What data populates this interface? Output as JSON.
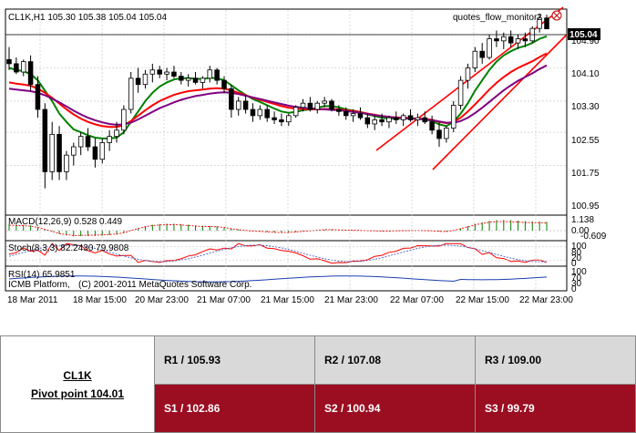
{
  "chart_data": {
    "type": "candlestick",
    "symbol_header": "CL1K,H1  105.30 105.38 105.04 105.04",
    "indicator_name": "quotes_flow_monitor2",
    "current_price": "105.04",
    "price_ticks": [
      "104.90",
      "104.10",
      "103.30",
      "102.55",
      "101.75",
      "100.95"
    ],
    "x_ticks": [
      "18 Mar 2011",
      "18 Mar 15:00",
      "20 Mar 23:00",
      "21 Mar 07:00",
      "21 Mar 15:00",
      "21 Mar 23:00",
      "22 Mar 07:00",
      "22 Mar 15:00",
      "22 Mar 23:00"
    ],
    "ylim": [
      100.95,
      105.6
    ],
    "candles": [
      [
        104.3,
        104.6,
        104.05,
        104.2
      ],
      [
        104.2,
        104.35,
        103.95,
        104.0
      ],
      [
        104.0,
        104.3,
        103.9,
        104.25
      ],
      [
        104.25,
        104.4,
        103.55,
        103.7
      ],
      [
        103.7,
        103.9,
        102.9,
        103.1
      ],
      [
        103.1,
        103.25,
        101.2,
        101.6
      ],
      [
        101.6,
        102.8,
        101.4,
        102.5
      ],
      [
        102.5,
        102.7,
        101.4,
        101.6
      ],
      [
        101.6,
        102.1,
        101.4,
        102.0
      ],
      [
        102.0,
        102.3,
        101.75,
        102.2
      ],
      [
        102.2,
        102.55,
        102.0,
        102.45
      ],
      [
        102.45,
        102.65,
        102.1,
        102.2
      ],
      [
        102.2,
        102.4,
        101.7,
        101.9
      ],
      [
        101.9,
        102.4,
        101.8,
        102.3
      ],
      [
        102.3,
        102.6,
        102.1,
        102.45
      ],
      [
        102.45,
        102.8,
        102.3,
        102.6
      ],
      [
        102.6,
        103.2,
        102.5,
        103.1
      ],
      [
        103.1,
        104.0,
        103.0,
        103.85
      ],
      [
        103.85,
        104.1,
        103.5,
        103.7
      ],
      [
        103.7,
        104.05,
        103.6,
        103.95
      ],
      [
        103.95,
        104.2,
        103.75,
        104.05
      ],
      [
        104.05,
        104.15,
        103.85,
        103.95
      ],
      [
        103.95,
        104.1,
        103.8,
        104.0
      ],
      [
        104.0,
        104.15,
        103.85,
        103.9
      ],
      [
        103.9,
        104.0,
        103.7,
        103.8
      ],
      [
        103.8,
        103.95,
        103.65,
        103.85
      ],
      [
        103.85,
        104.0,
        103.7,
        103.75
      ],
      [
        103.75,
        103.9,
        103.6,
        103.85
      ],
      [
        103.85,
        104.15,
        103.75,
        104.05
      ],
      [
        104.05,
        104.1,
        103.7,
        103.8
      ],
      [
        103.8,
        103.9,
        103.5,
        103.6
      ],
      [
        103.6,
        103.7,
        102.9,
        103.1
      ],
      [
        103.1,
        103.4,
        102.95,
        103.3
      ],
      [
        103.3,
        103.45,
        103.0,
        103.1
      ],
      [
        103.1,
        103.25,
        102.8,
        102.95
      ],
      [
        102.95,
        103.2,
        102.85,
        103.1
      ],
      [
        103.1,
        103.2,
        102.8,
        102.9
      ],
      [
        102.9,
        103.05,
        102.75,
        102.85
      ],
      [
        102.85,
        103.0,
        102.7,
        102.8
      ],
      [
        102.8,
        103.0,
        102.7,
        102.95
      ],
      [
        102.95,
        103.2,
        102.9,
        103.15
      ],
      [
        103.15,
        103.35,
        103.05,
        103.25
      ],
      [
        103.25,
        103.4,
        103.05,
        103.1
      ],
      [
        103.1,
        103.3,
        103.0,
        103.25
      ],
      [
        103.25,
        103.4,
        103.15,
        103.3
      ],
      [
        103.3,
        103.35,
        103.05,
        103.1
      ],
      [
        103.1,
        103.2,
        102.95,
        103.05
      ],
      [
        103.05,
        103.15,
        102.85,
        102.95
      ],
      [
        102.95,
        103.1,
        102.8,
        103.0
      ],
      [
        103.0,
        103.15,
        102.85,
        102.9
      ],
      [
        102.9,
        103.0,
        102.65,
        102.75
      ],
      [
        102.75,
        102.95,
        102.6,
        102.85
      ],
      [
        102.85,
        103.0,
        102.7,
        102.8
      ],
      [
        102.8,
        102.95,
        102.65,
        102.9
      ],
      [
        102.9,
        103.05,
        102.75,
        102.85
      ],
      [
        102.85,
        103.0,
        102.7,
        102.95
      ],
      [
        102.95,
        103.1,
        102.8,
        102.85
      ],
      [
        102.85,
        103.0,
        102.7,
        102.9
      ],
      [
        102.9,
        103.05,
        102.75,
        102.8
      ],
      [
        102.8,
        102.95,
        102.5,
        102.6
      ],
      [
        102.6,
        102.8,
        102.2,
        102.4
      ],
      [
        102.4,
        102.7,
        102.3,
        102.65
      ],
      [
        102.65,
        103.3,
        102.55,
        103.2
      ],
      [
        103.2,
        103.9,
        103.1,
        103.8
      ],
      [
        103.8,
        104.2,
        103.6,
        104.1
      ],
      [
        104.1,
        104.6,
        104.0,
        104.5
      ],
      [
        104.5,
        104.7,
        104.2,
        104.35
      ],
      [
        104.35,
        104.9,
        104.3,
        104.8
      ],
      [
        104.8,
        105.0,
        104.6,
        104.75
      ],
      [
        104.75,
        104.95,
        104.55,
        104.85
      ],
      [
        104.85,
        105.0,
        104.6,
        104.7
      ],
      [
        104.7,
        104.9,
        104.55,
        104.8
      ],
      [
        104.8,
        104.95,
        104.6,
        104.75
      ],
      [
        104.75,
        105.1,
        104.7,
        105.05
      ],
      [
        105.05,
        105.4,
        104.95,
        105.3
      ],
      [
        105.3,
        105.38,
        105.04,
        105.04
      ]
    ],
    "series": [
      {
        "color": "#008000",
        "values": [
          104.1,
          104.05,
          104.02,
          103.95,
          103.8,
          103.55,
          103.3,
          103.0,
          102.8,
          102.62,
          102.55,
          102.48,
          102.42,
          102.4,
          102.4,
          102.42,
          102.55,
          102.8,
          103.05,
          103.3,
          103.5,
          103.65,
          103.75,
          103.82,
          103.85,
          103.85,
          103.84,
          103.83,
          103.86,
          103.85,
          103.8,
          103.68,
          103.56,
          103.45,
          103.35,
          103.28,
          103.2,
          103.12,
          103.05,
          103.02,
          103.04,
          103.08,
          103.1,
          103.14,
          103.18,
          103.18,
          103.15,
          103.1,
          103.07,
          103.04,
          102.98,
          102.94,
          102.9,
          102.88,
          102.88,
          102.89,
          102.88,
          102.88,
          102.86,
          102.82,
          102.74,
          102.7,
          102.8,
          103.0,
          103.25,
          103.55,
          103.8,
          104.05,
          104.25,
          104.4,
          104.5,
          104.58,
          104.63,
          104.7,
          104.8,
          104.86
        ]
      },
      {
        "color": "#ff0000",
        "values": [
          103.75,
          103.72,
          103.7,
          103.67,
          103.6,
          103.5,
          103.38,
          103.24,
          103.1,
          102.98,
          102.88,
          102.8,
          102.74,
          102.7,
          102.68,
          102.68,
          102.72,
          102.82,
          102.95,
          103.08,
          103.2,
          103.3,
          103.38,
          103.45,
          103.5,
          103.54,
          103.56,
          103.58,
          103.6,
          103.61,
          103.6,
          103.56,
          103.5,
          103.44,
          103.38,
          103.33,
          103.28,
          103.23,
          103.18,
          103.14,
          103.12,
          103.11,
          103.1,
          103.1,
          103.11,
          103.11,
          103.1,
          103.08,
          103.06,
          103.04,
          103.0,
          102.97,
          102.94,
          102.92,
          102.91,
          102.9,
          102.89,
          102.88,
          102.87,
          102.85,
          102.8,
          102.77,
          102.8,
          102.9,
          103.05,
          103.22,
          103.4,
          103.58,
          103.74,
          103.88,
          104.0,
          104.1,
          104.18,
          104.26,
          104.36,
          104.45
        ]
      },
      {
        "color": "#800080",
        "values": [
          103.6,
          103.58,
          103.56,
          103.54,
          103.5,
          103.44,
          103.36,
          103.27,
          103.17,
          103.07,
          102.98,
          102.9,
          102.84,
          102.79,
          102.75,
          102.73,
          102.74,
          102.78,
          102.86,
          102.95,
          103.04,
          103.13,
          103.2,
          103.27,
          103.33,
          103.38,
          103.42,
          103.45,
          103.48,
          103.5,
          103.51,
          103.5,
          103.47,
          103.43,
          103.39,
          103.35,
          103.31,
          103.27,
          103.23,
          103.19,
          103.16,
          103.14,
          103.12,
          103.11,
          103.1,
          103.09,
          103.08,
          103.06,
          103.04,
          103.02,
          102.99,
          102.96,
          102.94,
          102.92,
          102.9,
          102.89,
          102.88,
          102.87,
          102.86,
          102.84,
          102.81,
          102.78,
          102.78,
          102.82,
          102.9,
          103.01,
          103.14,
          103.28,
          103.42,
          103.56,
          103.68,
          103.79,
          103.88,
          103.97,
          104.07,
          104.16
        ]
      }
    ],
    "macd_label": "MACD(12,26,9) 0.528 0.449",
    "macd_ticks": [
      "1.138",
      "0.00",
      "-0.609"
    ],
    "stoch_label": "Stoch(8,3,3) 82.2430 79.9808",
    "stoch_ticks": [
      "100",
      "80",
      "20",
      "0"
    ],
    "rsi_label": "RSI(14) 65.9851",
    "rsi_ticks": [
      "100",
      "70",
      "30",
      "0"
    ],
    "copyright": "(C) 2001-2011 MetaQuotes Software Corp.",
    "icmb_label": "ICMB Platform,"
  },
  "pivot_table": {
    "symbol": "CL1K",
    "pivot": "Pivot point 104.01",
    "resistance": [
      "R1 / 105.93",
      "R2  / 107.08",
      "R3 / 109.00"
    ],
    "support": [
      "S1 / 102.86",
      "S2 /  100.94",
      "S3 /  99.79"
    ]
  }
}
